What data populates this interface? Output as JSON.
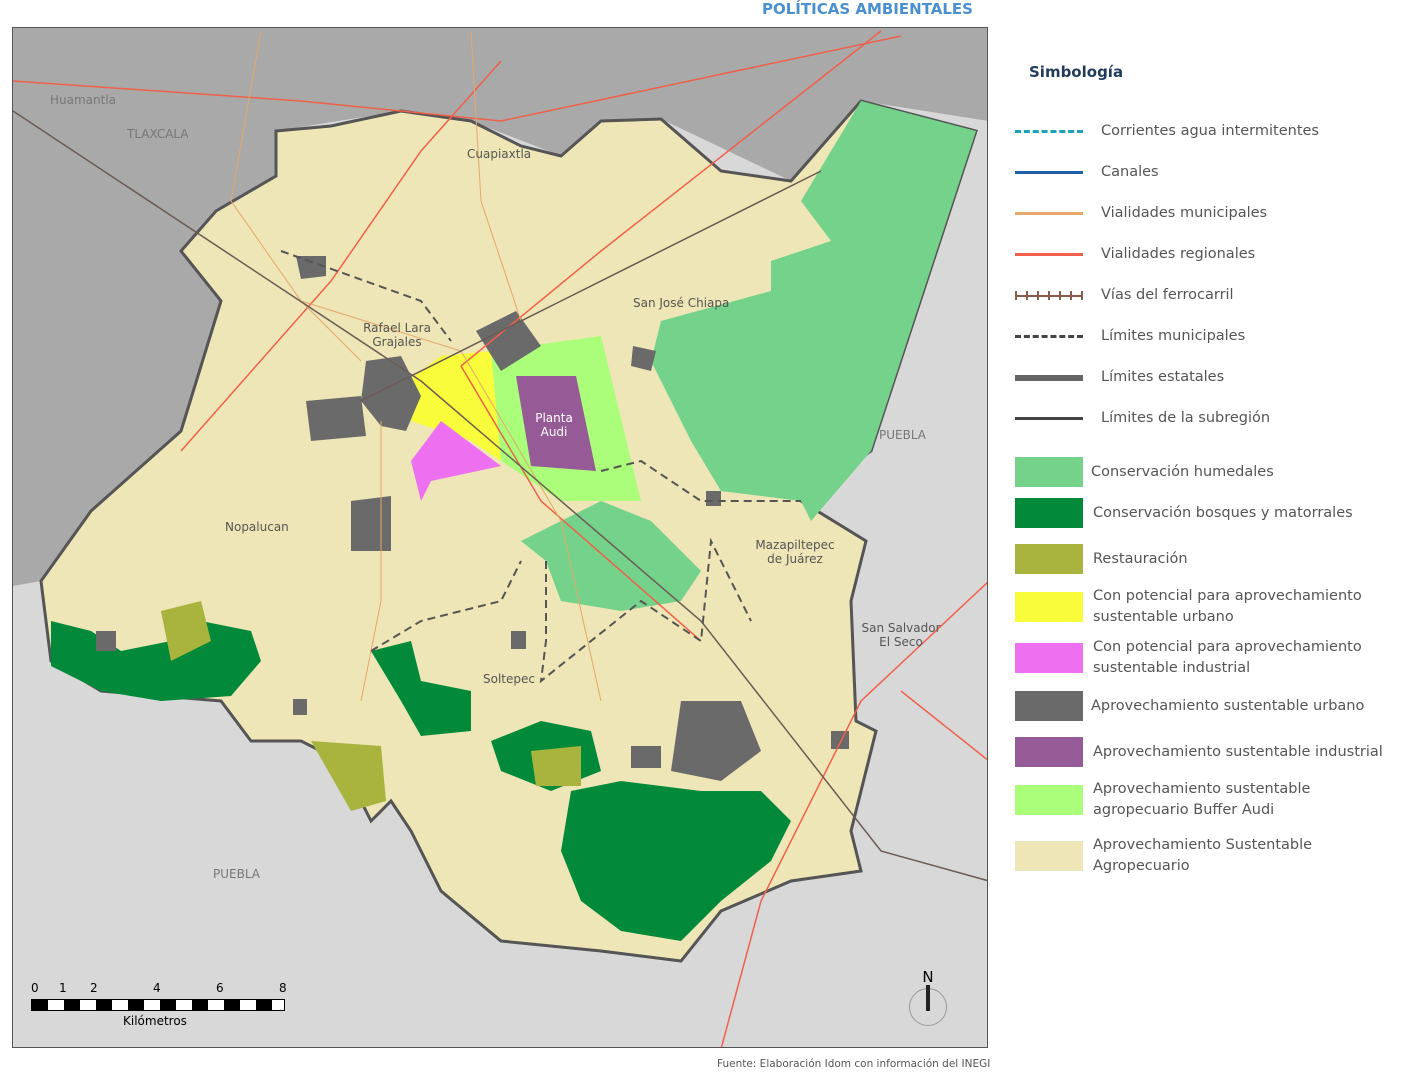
{
  "header": {
    "title": "POLÍTICAS AMBIENTALES"
  },
  "map": {
    "place_labels": {
      "huamantla": "Huamantla",
      "tlaxcala": "TLAXCALA",
      "cuapiaxtla": "Cuapiaxtla",
      "san_jose_chiapa": "San José Chiapa",
      "rafael_lara_grajales": "Rafael Lara Grajales",
      "planta_audi": "Planta Audi",
      "puebla_east": "PUEBLA",
      "nopalucan": "Nopalucan",
      "mazapiltepec": "Mazapiltepec de Juárez",
      "san_salvador_el_seco": "San Salvador El Seco",
      "soltepec": "Soltepec",
      "puebla_south": "PUEBLA"
    },
    "scale": {
      "ticks": [
        "0",
        "1",
        "2",
        "4",
        "6",
        "8"
      ],
      "unit": "Kilómetros"
    },
    "north_label": "N"
  },
  "legend": {
    "title": "Simbología",
    "line_items": [
      {
        "label": "Corrientes agua intermitentes",
        "color": "#1aa3b8",
        "style": "dashed"
      },
      {
        "label": "Canales",
        "color": "#1f5fa8",
        "style": "solid"
      },
      {
        "label": "Vialidades municipales",
        "color": "#e4a86a",
        "style": "solid"
      },
      {
        "label": "Vialidades regionales",
        "color": "#f0604a",
        "style": "solid"
      },
      {
        "label": "Vías del ferrocarril",
        "color": "#8a5a4a",
        "style": "rail"
      },
      {
        "label": "Límites municipales",
        "color": "#444444",
        "style": "dashed"
      },
      {
        "label": "Límites estatales",
        "color": "#666666",
        "style": "thick"
      },
      {
        "label": "Límites de la subregión",
        "color": "#444444",
        "style": "solid"
      }
    ],
    "fill_items": [
      {
        "label": "Conservación humedales",
        "color": "#74d28a"
      },
      {
        "label": "Conservación bosques y matorrales",
        "color": "#028a3a"
      },
      {
        "label": "Restauración",
        "color": "#a8b43e"
      },
      {
        "label": "Con potencial para aprovechamiento sustentable urbano",
        "color": "#f8fc3a"
      },
      {
        "label": "Con potencial para aprovechamiento sustentable industrial",
        "color": "#ec70f0"
      },
      {
        "label": "Aprovechamiento sustentable urbano",
        "color": "#6a6a6a"
      },
      {
        "label": "Aprovechamiento sustentable industrial",
        "color": "#965a96"
      },
      {
        "label": "Aprovechamiento sustentable agropecuario Buffer Audi",
        "color": "#aafe7a"
      },
      {
        "label": "Aprovechamiento Sustentable Agropecuario",
        "color": "#eee6b6"
      }
    ]
  },
  "footer": {
    "source": "Fuente: Elaboración Idom con información del INEGI"
  }
}
